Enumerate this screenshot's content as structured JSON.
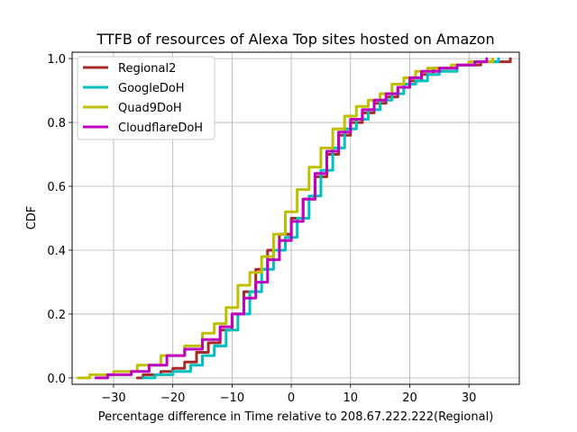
{
  "chart_data": {
    "type": "line",
    "title": "TTFB of resources of Alexa Top sites hosted on Amazon",
    "xlabel": "Percentage difference in Time relative to 208.67.222.222(Regional)",
    "ylabel": "CDF",
    "xlim": [
      -37,
      38.5
    ],
    "ylim": [
      -0.02,
      1.02
    ],
    "xticks": [
      -30,
      -20,
      -10,
      0,
      10,
      20,
      30
    ],
    "xtick_labels": [
      "−30",
      "−20",
      "−10",
      "0",
      "10",
      "20",
      "30"
    ],
    "yticks": [
      0.0,
      0.2,
      0.4,
      0.6,
      0.8,
      1.0
    ],
    "ytick_labels": [
      "0.0",
      "0.2",
      "0.4",
      "0.6",
      "0.8",
      "1.0"
    ],
    "grid": true,
    "legend_position": "top-left",
    "series": [
      {
        "name": "Regional2",
        "color": "#a52a2a",
        "points": [
          [
            -26,
            0.0
          ],
          [
            -25,
            0.01
          ],
          [
            -22,
            0.02
          ],
          [
            -20,
            0.03
          ],
          [
            -18,
            0.05
          ],
          [
            -16,
            0.08
          ],
          [
            -14,
            0.11
          ],
          [
            -12,
            0.15
          ],
          [
            -10,
            0.2
          ],
          [
            -8,
            0.27
          ],
          [
            -6,
            0.34
          ],
          [
            -4,
            0.4
          ],
          [
            -2,
            0.45
          ],
          [
            0,
            0.5
          ],
          [
            2,
            0.56
          ],
          [
            4,
            0.63
          ],
          [
            6,
            0.7
          ],
          [
            8,
            0.76
          ],
          [
            10,
            0.8
          ],
          [
            12,
            0.83
          ],
          [
            14,
            0.86
          ],
          [
            16,
            0.88
          ],
          [
            18,
            0.91
          ],
          [
            20,
            0.93
          ],
          [
            22,
            0.95
          ],
          [
            24,
            0.97
          ],
          [
            28,
            0.98
          ],
          [
            32,
            0.99
          ],
          [
            37,
            1.0
          ]
        ]
      },
      {
        "name": "GoogleDoH",
        "color": "#00bfbf",
        "points": [
          [
            -25,
            0.0
          ],
          [
            -23,
            0.01
          ],
          [
            -20,
            0.02
          ],
          [
            -17,
            0.04
          ],
          [
            -15,
            0.07
          ],
          [
            -13,
            0.1
          ],
          [
            -11,
            0.15
          ],
          [
            -9,
            0.2
          ],
          [
            -7,
            0.27
          ],
          [
            -5,
            0.34
          ],
          [
            -3,
            0.4
          ],
          [
            -1,
            0.44
          ],
          [
            1,
            0.5
          ],
          [
            3,
            0.57
          ],
          [
            5,
            0.65
          ],
          [
            7,
            0.72
          ],
          [
            9,
            0.78
          ],
          [
            11,
            0.81
          ],
          [
            13,
            0.84
          ],
          [
            15,
            0.87
          ],
          [
            17,
            0.89
          ],
          [
            19,
            0.92
          ],
          [
            21,
            0.93
          ],
          [
            23,
            0.95
          ],
          [
            25,
            0.96
          ],
          [
            28,
            0.98
          ],
          [
            31,
            0.99
          ],
          [
            35,
            1.0
          ]
        ]
      },
      {
        "name": "Quad9DoH",
        "color": "#bfbf00",
        "points": [
          [
            -36,
            0.0
          ],
          [
            -34,
            0.01
          ],
          [
            -30,
            0.02
          ],
          [
            -26,
            0.04
          ],
          [
            -22,
            0.07
          ],
          [
            -18,
            0.1
          ],
          [
            -15,
            0.14
          ],
          [
            -13,
            0.17
          ],
          [
            -11,
            0.22
          ],
          [
            -9,
            0.29
          ],
          [
            -7,
            0.33
          ],
          [
            -5,
            0.38
          ],
          [
            -3,
            0.45
          ],
          [
            -1,
            0.52
          ],
          [
            1,
            0.59
          ],
          [
            3,
            0.66
          ],
          [
            5,
            0.72
          ],
          [
            7,
            0.78
          ],
          [
            9,
            0.82
          ],
          [
            11,
            0.85
          ],
          [
            13,
            0.87
          ],
          [
            15,
            0.89
          ],
          [
            17,
            0.92
          ],
          [
            19,
            0.94
          ],
          [
            21,
            0.96
          ],
          [
            23,
            0.97
          ],
          [
            27,
            0.98
          ],
          [
            30,
            0.99
          ],
          [
            34,
            1.0
          ]
        ]
      },
      {
        "name": "CloudflareDoH",
        "color": "#bf00bf",
        "points": [
          [
            -33,
            0.0
          ],
          [
            -31,
            0.01
          ],
          [
            -27,
            0.02
          ],
          [
            -24,
            0.04
          ],
          [
            -21,
            0.07
          ],
          [
            -18,
            0.09
          ],
          [
            -15,
            0.12
          ],
          [
            -12,
            0.16
          ],
          [
            -10,
            0.2
          ],
          [
            -8,
            0.25
          ],
          [
            -6,
            0.3
          ],
          [
            -4,
            0.37
          ],
          [
            -2,
            0.43
          ],
          [
            0,
            0.49
          ],
          [
            2,
            0.56
          ],
          [
            4,
            0.64
          ],
          [
            6,
            0.71
          ],
          [
            8,
            0.77
          ],
          [
            10,
            0.81
          ],
          [
            12,
            0.84
          ],
          [
            14,
            0.87
          ],
          [
            16,
            0.89
          ],
          [
            18,
            0.91
          ],
          [
            20,
            0.94
          ],
          [
            22,
            0.96
          ],
          [
            25,
            0.97
          ],
          [
            28,
            0.98
          ],
          [
            31,
            0.99
          ],
          [
            33,
            1.0
          ]
        ]
      }
    ]
  }
}
